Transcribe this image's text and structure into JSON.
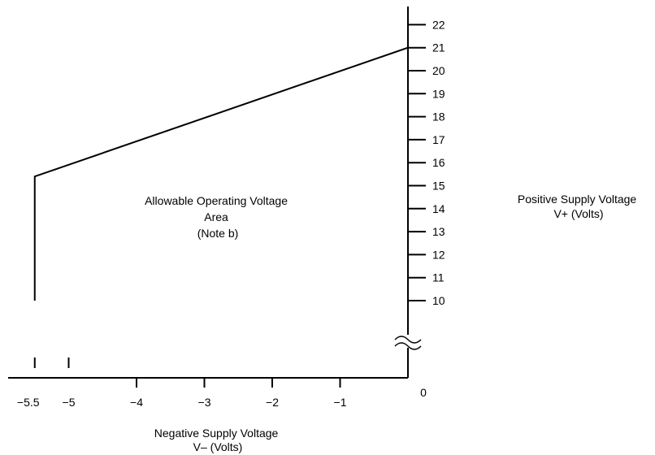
{
  "chart_data": {
    "type": "area",
    "series": [
      {
        "name": "",
        "x": [
          -5.5,
          -5.5,
          0,
          0
        ],
        "y": [
          10,
          15.4,
          21,
          10
        ]
      }
    ],
    "x_ticks": [
      -5.5,
      -5,
      -4,
      -3,
      -2,
      -1
    ],
    "x_tick_labels": [
      "−5.5",
      "−5",
      "−4",
      "−3",
      "−2",
      "−1"
    ],
    "origin_label": "0",
    "y_ticks": [
      10,
      11,
      12,
      13,
      14,
      15,
      16,
      17,
      18,
      19,
      20,
      21,
      22
    ],
    "y_tick_labels": [
      "10",
      "11",
      "12",
      "13",
      "14",
      "15",
      "16",
      "17",
      "18",
      "19",
      "20",
      "21",
      "22"
    ],
    "xlabel": [
      "Negative Supply Voltage",
      "V–  (Volts)"
    ],
    "ylabel": [
      "Positive Supply Voltage",
      "V+  (Volts)"
    ],
    "annotation": [
      "Allowable Operating Voltage",
      "Area",
      "(Note b)"
    ],
    "xlim": [
      -6,
      0
    ],
    "ylim": [
      10,
      22.5
    ],
    "y_axis_break": true,
    "grid": false,
    "legend": "none"
  }
}
